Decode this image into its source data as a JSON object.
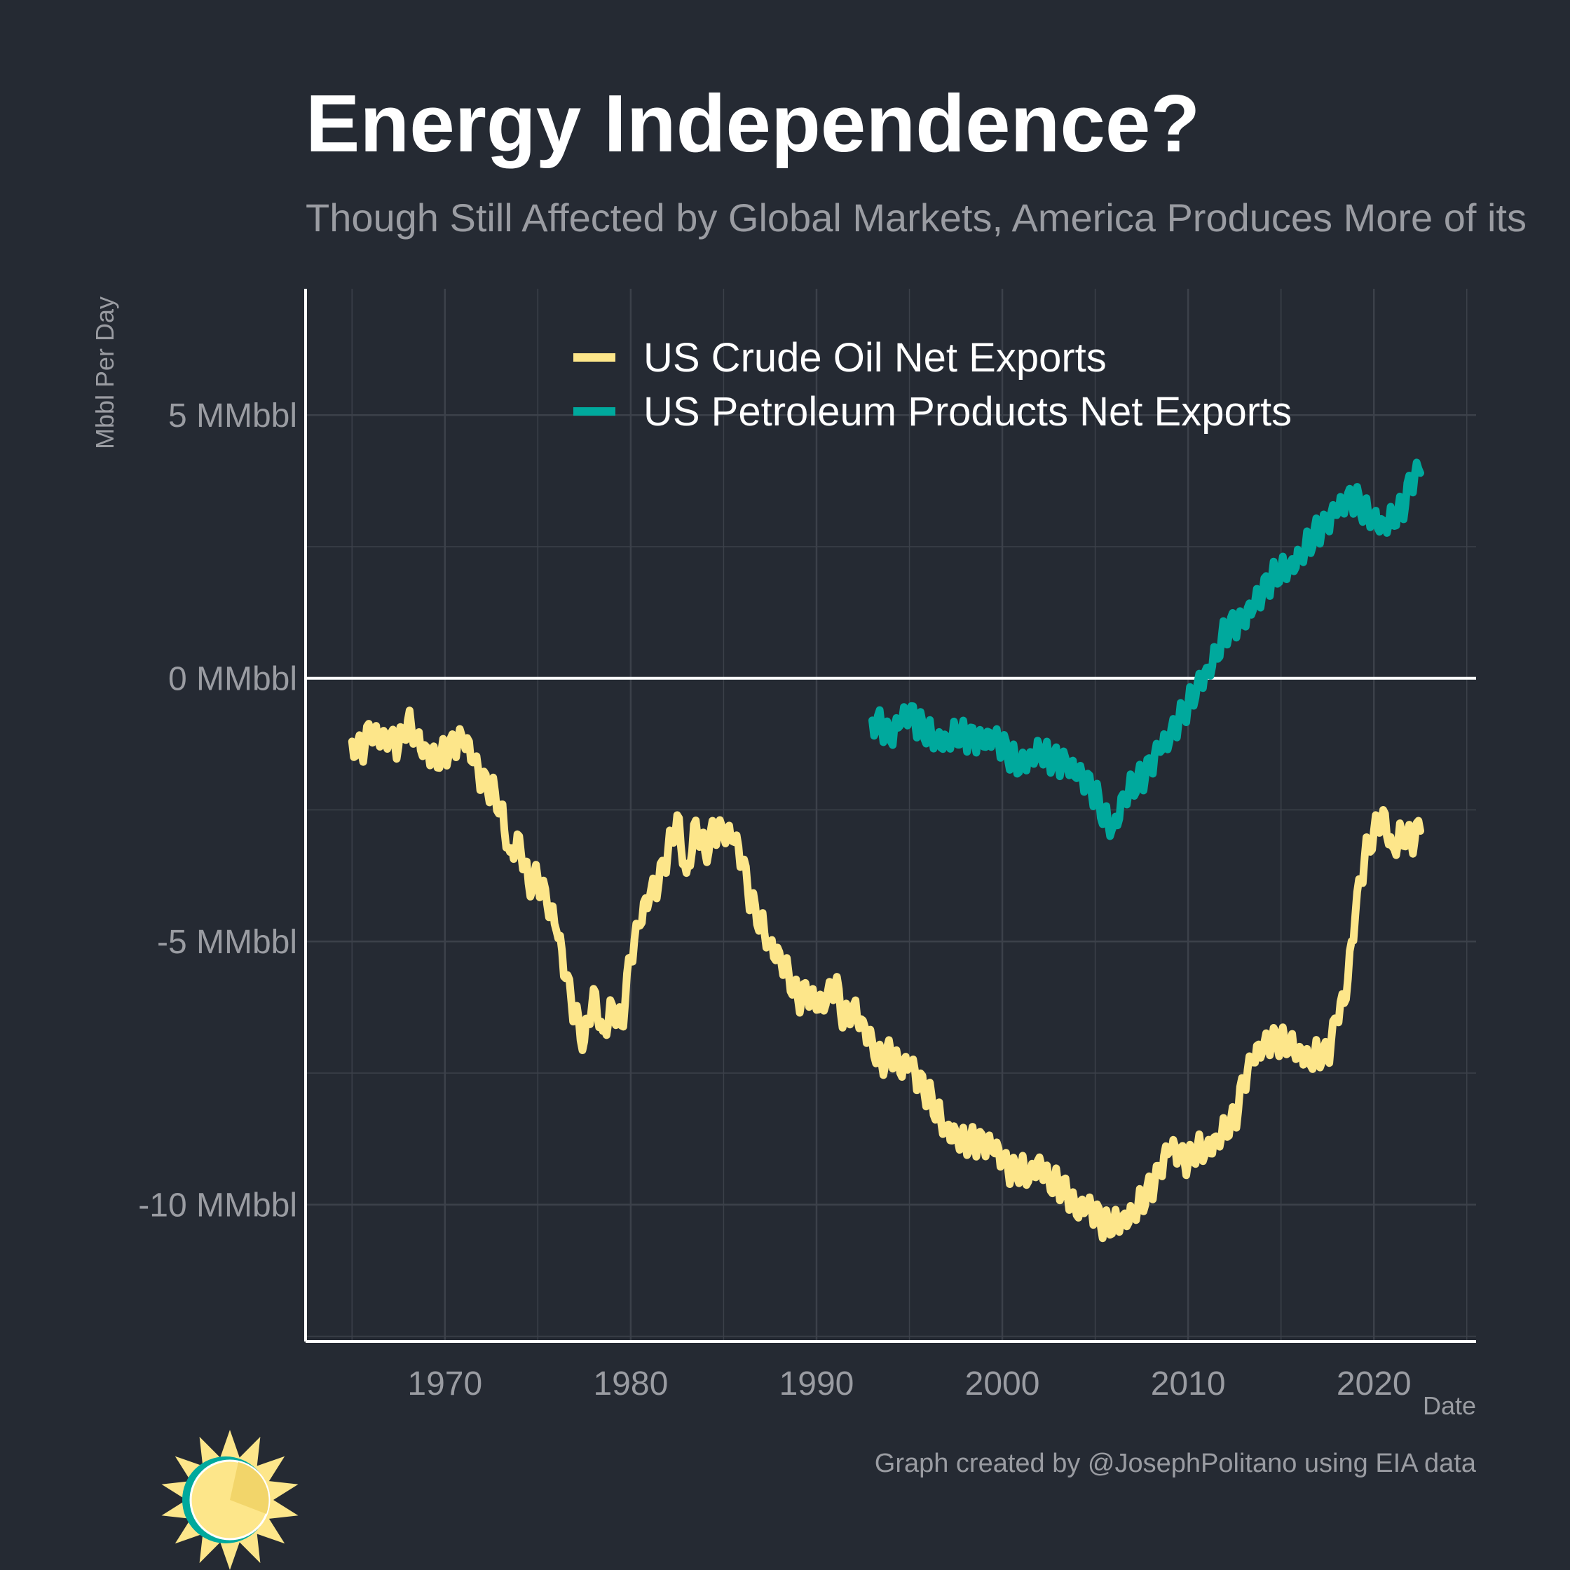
{
  "title": "Energy Independence?",
  "subtitle": "Though Still Affected by Global Markets, America Produces More of its",
  "caption": "Graph created by @JosephPolitano using EIA data",
  "colors": {
    "background": "#252a33",
    "crude": "#fde68a",
    "products": "#00a99d",
    "grid": "#3c414a",
    "axis": "#ffffff",
    "text_muted": "#9a9ca2",
    "logo_ring": "#00a99d",
    "logo_sun": "#fde68a"
  },
  "logo": {
    "icon": "sun-logo-icon"
  },
  "chart_data": {
    "type": "line",
    "xlabel": "Date",
    "ylabel": "Mbbl Per Day",
    "xlim": [
      1962.5,
      2025.5
    ],
    "ylim": [
      -12.6,
      7.4
    ],
    "x_ticks": [
      1970,
      1980,
      1990,
      2000,
      2010,
      2020
    ],
    "x_tick_labels": [
      "1970",
      "1980",
      "1990",
      "2000",
      "2010",
      "2020"
    ],
    "y_ticks": [
      5,
      0,
      -5,
      -10
    ],
    "y_tick_labels": [
      "5 MMbbl",
      "0 MMbbl",
      "-5 MMbbl",
      "-10 MMbbl"
    ],
    "grid": true,
    "zero_line": true,
    "legend_position": "top",
    "series": [
      {
        "name": "US Crude Oil Net Exports",
        "color": "#fde68a",
        "x": [
          1965.0,
          1965.5,
          1966.0,
          1966.5,
          1967.0,
          1967.5,
          1968.0,
          1968.5,
          1969.0,
          1969.5,
          1970.0,
          1970.5,
          1971.0,
          1971.5,
          1972.0,
          1972.5,
          1973.0,
          1973.5,
          1974.0,
          1974.5,
          1975.0,
          1975.5,
          1976.0,
          1976.5,
          1977.0,
          1977.5,
          1978.0,
          1978.5,
          1979.0,
          1979.5,
          1980.0,
          1980.5,
          1981.0,
          1981.5,
          1982.0,
          1982.5,
          1983.0,
          1983.5,
          1984.0,
          1984.5,
          1985.0,
          1985.5,
          1986.0,
          1986.5,
          1987.0,
          1987.5,
          1988.0,
          1988.5,
          1989.0,
          1989.5,
          1990.0,
          1990.5,
          1991.0,
          1991.5,
          1992.0,
          1992.5,
          1993.0,
          1993.5,
          1994.0,
          1994.5,
          1995.0,
          1995.5,
          1996.0,
          1996.5,
          1997.0,
          1997.5,
          1998.0,
          1998.5,
          1999.0,
          1999.5,
          2000.0,
          2000.5,
          2001.0,
          2001.5,
          2002.0,
          2002.5,
          2003.0,
          2003.5,
          2004.0,
          2004.5,
          2005.0,
          2005.5,
          2006.0,
          2006.5,
          2007.0,
          2007.5,
          2008.0,
          2008.5,
          2009.0,
          2009.5,
          2010.0,
          2010.5,
          2011.0,
          2011.5,
          2012.0,
          2012.5,
          2013.0,
          2013.5,
          2014.0,
          2014.5,
          2015.0,
          2015.5,
          2016.0,
          2016.5,
          2017.0,
          2017.5,
          2018.0,
          2018.5,
          2019.0,
          2019.5,
          2020.0,
          2020.5,
          2021.0,
          2021.5,
          2022.0,
          2022.5
        ],
        "values": [
          -1.2,
          -1.4,
          -1.0,
          -1.3,
          -1.2,
          -1.3,
          -0.8,
          -1.1,
          -1.3,
          -1.5,
          -1.4,
          -1.3,
          -1.2,
          -1.6,
          -2.0,
          -2.1,
          -2.4,
          -3.3,
          -3.0,
          -3.9,
          -3.8,
          -4.3,
          -4.8,
          -5.7,
          -6.4,
          -6.9,
          -5.9,
          -6.7,
          -6.2,
          -6.6,
          -5.3,
          -4.7,
          -4.2,
          -3.9,
          -3.3,
          -2.6,
          -3.7,
          -2.7,
          -3.3,
          -2.9,
          -3.0,
          -3.1,
          -3.5,
          -4.3,
          -4.6,
          -5.0,
          -5.2,
          -5.6,
          -6.1,
          -6.0,
          -6.3,
          -6.2,
          -5.8,
          -6.5,
          -6.2,
          -6.5,
          -6.9,
          -7.3,
          -7.1,
          -7.5,
          -7.4,
          -7.7,
          -7.9,
          -8.2,
          -8.5,
          -8.6,
          -8.8,
          -8.8,
          -8.9,
          -9.0,
          -9.2,
          -9.4,
          -9.3,
          -9.4,
          -9.1,
          -9.5,
          -9.6,
          -9.8,
          -10.2,
          -10.1,
          -10.2,
          -10.4,
          -10.3,
          -10.2,
          -10.1,
          -9.9,
          -9.7,
          -9.4,
          -9.0,
          -9.1,
          -9.2,
          -8.9,
          -8.9,
          -8.7,
          -8.5,
          -8.4,
          -7.7,
          -7.3,
          -7.1,
          -6.9,
          -6.9,
          -6.9,
          -7.0,
          -7.2,
          -7.1,
          -7.2,
          -6.5,
          -6.1,
          -4.5,
          -3.4,
          -2.9,
          -2.5,
          -3.2,
          -2.9,
          -3.1,
          -2.9
        ]
      },
      {
        "name": "US Petroleum Products Net Exports",
        "color": "#00a99d",
        "x": [
          1993.0,
          1993.5,
          1994.0,
          1994.5,
          1995.0,
          1995.5,
          1996.0,
          1996.5,
          1997.0,
          1997.5,
          1998.0,
          1998.5,
          1999.0,
          1999.5,
          2000.0,
          2000.5,
          2001.0,
          2001.5,
          2002.0,
          2002.5,
          2003.0,
          2003.5,
          2004.0,
          2004.5,
          2005.0,
          2005.5,
          2006.0,
          2006.5,
          2007.0,
          2007.5,
          2008.0,
          2008.5,
          2009.0,
          2009.5,
          2010.0,
          2010.5,
          2011.0,
          2011.5,
          2012.0,
          2012.5,
          2013.0,
          2013.5,
          2014.0,
          2014.5,
          2015.0,
          2015.5,
          2016.0,
          2016.5,
          2017.0,
          2017.5,
          2018.0,
          2018.5,
          2019.0,
          2019.5,
          2020.0,
          2020.5,
          2021.0,
          2021.5,
          2022.0,
          2022.5
        ],
        "values": [
          -0.8,
          -0.9,
          -1.2,
          -0.9,
          -0.7,
          -0.9,
          -1.0,
          -1.1,
          -1.1,
          -1.0,
          -1.1,
          -1.2,
          -1.3,
          -1.2,
          -1.3,
          -1.5,
          -1.6,
          -1.4,
          -1.3,
          -1.5,
          -1.6,
          -1.7,
          -1.9,
          -2.0,
          -2.2,
          -2.6,
          -2.8,
          -2.2,
          -2.0,
          -1.9,
          -1.7,
          -1.4,
          -1.2,
          -0.8,
          -0.5,
          -0.1,
          0.2,
          0.5,
          0.9,
          1.0,
          1.0,
          1.3,
          1.6,
          1.9,
          2.1,
          2.2,
          2.4,
          2.6,
          2.8,
          2.9,
          3.1,
          3.3,
          3.4,
          3.2,
          3.1,
          3.0,
          3.1,
          3.2,
          3.7,
          3.9
        ]
      }
    ]
  }
}
